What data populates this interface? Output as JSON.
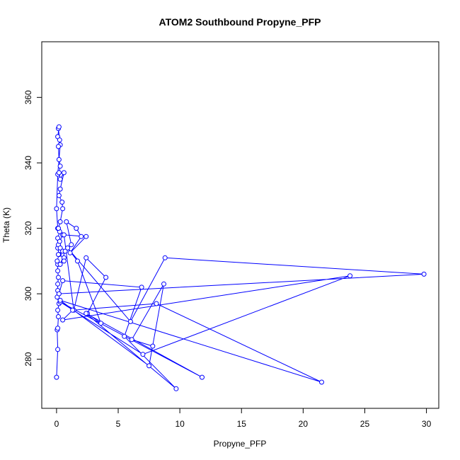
{
  "chart_data": {
    "type": "line",
    "title": "ATOM2 Southbound Propyne_PFP",
    "xlabel": "Propyne_PFP",
    "ylabel": "Theta (K)",
    "xlim": [
      -1.2,
      31.0
    ],
    "ylim": [
      265,
      377
    ],
    "x_ticks": [
      0,
      5,
      10,
      15,
      20,
      25,
      30
    ],
    "y_ticks": [
      280,
      300,
      320,
      340,
      360
    ],
    "x_tick_labels": [
      "0",
      "5",
      "10",
      "15",
      "20",
      "25",
      "30"
    ],
    "y_tick_labels": [
      "280",
      "300",
      "320",
      "340",
      "360"
    ],
    "grid": false,
    "legend": "none",
    "marker": "open-circle",
    "color": "#0000ff",
    "series": [
      {
        "x": [
          0.0,
          0.1,
          0.05,
          0.1,
          0.15,
          0.1,
          0.2,
          0.05,
          0.1,
          0.1,
          0.15,
          0.1,
          0.1,
          0.05,
          0.2,
          0.1,
          0.15,
          0.1,
          0.25,
          0.1,
          0.0,
          0.1,
          0.3,
          0.15,
          0.2,
          0.1,
          0.25,
          0.15,
          0.2,
          0.3,
          0.2,
          0.3,
          0.6,
          0.3,
          0.2,
          0.45,
          0.5,
          0.3,
          0.15,
          0.5,
          0.25,
          0.3,
          0.5,
          0.15,
          0.6,
          0.6,
          0.3,
          0.7,
          1.2,
          0.8,
          1.6,
          2.0,
          1.1,
          2.4,
          0.6,
          1.4,
          2.4,
          4.0,
          2.5,
          3.6,
          1.7,
          0.9,
          6.0,
          8.8,
          29.8,
          0.2,
          0.5,
          6.9,
          5.5,
          9.7,
          2.4,
          11.8,
          0.3,
          7.0,
          23.8,
          0.5,
          1.3,
          8.1,
          21.5,
          0.3,
          7.5,
          8.7,
          6.1,
          7.8
        ],
        "y": [
          274.5,
          283,
          289,
          289.5,
          293,
          295,
          297,
          299,
          301,
          303,
          305,
          307,
          309,
          310,
          312,
          314,
          315,
          317,
          319,
          320,
          326,
          336.5,
          345.5,
          350.5,
          351,
          348,
          347,
          345,
          341,
          339,
          337,
          335,
          337,
          332,
          330,
          328,
          326,
          322,
          320,
          318,
          316,
          314,
          313,
          312,
          311,
          310,
          309,
          313,
          315,
          322,
          320,
          317.5,
          312.5,
          317.5,
          318,
          295,
          311,
          305,
          294,
          291,
          310,
          314,
          291.5,
          311,
          306,
          300,
          304,
          302,
          287,
          271,
          294,
          274.5,
          297.5,
          281.5,
          305.5,
          292,
          295,
          297,
          273,
          298,
          278,
          303,
          286,
          284
        ]
      }
    ]
  }
}
